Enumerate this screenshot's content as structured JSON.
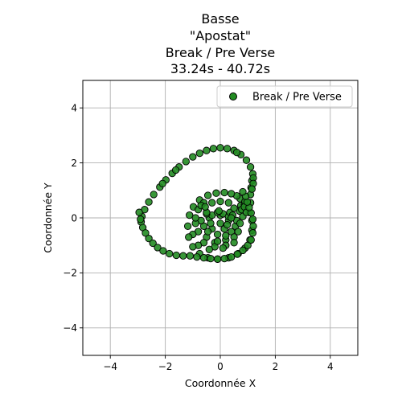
{
  "chart_data": {
    "type": "scatter",
    "title_lines": [
      "Basse",
      "\"Apostat\"",
      "Break / Pre Verse",
      "33.24s - 40.72s"
    ],
    "xlabel": "Coordonnée X",
    "ylabel": "Coordonnée Y",
    "xlim": [
      -5,
      5
    ],
    "ylim": [
      -5,
      5
    ],
    "x_ticks": [
      -4,
      -2,
      0,
      2,
      4
    ],
    "y_ticks": [
      -4,
      -2,
      0,
      2,
      4
    ],
    "grid": true,
    "legend_position": "top-right",
    "series": [
      {
        "name": "Break / Pre Verse",
        "color": "#228b22",
        "edge_color": "#000000",
        "points": [
          [
            0.0,
            0.1
          ],
          [
            -0.4,
            0.0
          ],
          [
            -0.6,
            -0.3
          ],
          [
            -0.5,
            -0.7
          ],
          [
            -0.2,
            -0.9
          ],
          [
            0.2,
            -0.8
          ],
          [
            0.4,
            -0.5
          ],
          [
            0.3,
            -0.1
          ],
          [
            0.1,
            0.15
          ],
          [
            -0.3,
            0.1
          ],
          [
            -0.7,
            -0.1
          ],
          [
            -0.8,
            -0.5
          ],
          [
            -0.6,
            -0.9
          ],
          [
            -0.2,
            -1.05
          ],
          [
            0.2,
            -1.0
          ],
          [
            0.5,
            -0.7
          ],
          [
            0.55,
            -0.3
          ],
          [
            0.3,
            0.05
          ],
          [
            -0.1,
            0.2
          ],
          [
            -0.5,
            0.15
          ],
          [
            -0.9,
            -0.2
          ],
          [
            -1.0,
            -0.6
          ],
          [
            -0.8,
            -1.0
          ],
          [
            -0.4,
            -1.15
          ],
          [
            0.1,
            -1.1
          ],
          [
            0.5,
            -0.9
          ],
          [
            0.65,
            -0.5
          ],
          [
            0.6,
            -0.1
          ],
          [
            0.35,
            0.2
          ],
          [
            -0.05,
            0.25
          ],
          [
            -0.5,
            0.2
          ],
          [
            -0.3,
            -0.4
          ],
          [
            -0.1,
            -0.6
          ],
          [
            0.15,
            -0.4
          ],
          [
            0.0,
            -0.2
          ],
          [
            -0.35,
            -0.2
          ],
          [
            -0.45,
            -0.5
          ],
          [
            0.25,
            -0.25
          ],
          [
            0.45,
            0.1
          ],
          [
            0.7,
            0.25
          ],
          [
            0.75,
            0.45
          ],
          [
            0.72,
            0.7
          ],
          [
            0.6,
            0.8
          ],
          [
            0.4,
            0.88
          ],
          [
            0.15,
            0.92
          ],
          [
            -0.15,
            0.9
          ],
          [
            -0.45,
            0.82
          ],
          [
            -0.75,
            0.65
          ],
          [
            -0.98,
            0.4
          ],
          [
            -1.12,
            0.1
          ],
          [
            -1.18,
            -0.3
          ],
          [
            -1.15,
            -0.7
          ],
          [
            -1.0,
            -1.05
          ],
          [
            -0.75,
            -1.3
          ],
          [
            -0.45,
            -1.45
          ],
          [
            -0.1,
            -1.5
          ],
          [
            0.3,
            -1.45
          ],
          [
            0.65,
            -1.3
          ],
          [
            0.9,
            -1.1
          ],
          [
            1.08,
            -0.8
          ],
          [
            1.15,
            -0.45
          ],
          [
            1.15,
            -0.1
          ],
          [
            1.05,
            0.2
          ],
          [
            0.88,
            0.48
          ],
          [
            0.78,
            0.3
          ],
          [
            0.82,
            0.05
          ],
          [
            0.72,
            -0.2
          ],
          [
            -0.6,
            0.55
          ],
          [
            -0.8,
            0.3
          ],
          [
            -0.9,
            0.0
          ],
          [
            -0.7,
            0.45
          ],
          [
            0.9,
            0.6
          ],
          [
            0.88,
            0.4
          ],
          [
            0.95,
            0.2
          ],
          [
            1.1,
            0.55
          ],
          [
            1.1,
            0.85
          ],
          [
            1.12,
            1.1
          ],
          [
            1.15,
            1.35
          ],
          [
            1.18,
            1.6
          ],
          [
            1.1,
            1.85
          ],
          [
            0.95,
            2.1
          ],
          [
            0.75,
            2.3
          ],
          [
            0.5,
            2.45
          ],
          [
            0.25,
            2.52
          ],
          [
            0.0,
            2.55
          ],
          [
            -0.25,
            2.52
          ],
          [
            -0.5,
            2.45
          ],
          [
            -0.75,
            2.35
          ],
          [
            -1.0,
            2.22
          ],
          [
            -1.25,
            2.05
          ],
          [
            -1.5,
            1.85
          ],
          [
            -1.75,
            1.62
          ],
          [
            -1.98,
            1.38
          ],
          [
            -2.2,
            1.12
          ],
          [
            -2.42,
            0.85
          ],
          [
            -2.6,
            0.58
          ],
          [
            -2.75,
            0.3
          ],
          [
            -2.85,
            0.05
          ],
          [
            -2.88,
            -0.15
          ],
          [
            -2.82,
            -0.35
          ],
          [
            -2.72,
            -0.55
          ],
          [
            -2.6,
            -0.75
          ],
          [
            -2.45,
            -0.92
          ],
          [
            -2.28,
            -1.08
          ],
          [
            -2.08,
            -1.2
          ],
          [
            -1.85,
            -1.3
          ],
          [
            -1.6,
            -1.36
          ],
          [
            -1.35,
            -1.38
          ],
          [
            -1.1,
            -1.38
          ],
          [
            -0.85,
            -1.42
          ],
          [
            -0.6,
            -1.45
          ],
          [
            -0.35,
            -1.48
          ],
          [
            -0.1,
            -1.5
          ],
          [
            0.15,
            -1.48
          ],
          [
            0.4,
            -1.42
          ],
          [
            0.62,
            -1.32
          ],
          [
            0.82,
            -1.18
          ],
          [
            1.0,
            -1.0
          ],
          [
            1.12,
            -0.8
          ],
          [
            1.18,
            -0.55
          ],
          [
            1.2,
            -0.3
          ],
          [
            1.18,
            -0.05
          ],
          [
            1.12,
            0.18
          ],
          [
            1.05,
            0.38
          ],
          [
            0.98,
            0.58
          ],
          [
            0.92,
            0.78
          ],
          [
            0.82,
            0.95
          ],
          [
            1.2,
            1.45
          ],
          [
            1.2,
            1.25
          ],
          [
            1.15,
            1.05
          ],
          [
            0.6,
            2.38
          ],
          [
            -1.62,
            1.74
          ],
          [
            -2.1,
            1.25
          ],
          [
            -2.95,
            0.2
          ],
          [
            -2.9,
            -0.05
          ],
          [
            0.5,
            0.35
          ],
          [
            0.3,
            0.55
          ],
          [
            0.0,
            0.6
          ],
          [
            -0.3,
            0.55
          ],
          [
            -0.55,
            0.4
          ],
          [
            0.4,
            0.0
          ],
          [
            0.2,
            -0.65
          ],
          [
            -0.1,
            -0.85
          ]
        ]
      }
    ]
  }
}
